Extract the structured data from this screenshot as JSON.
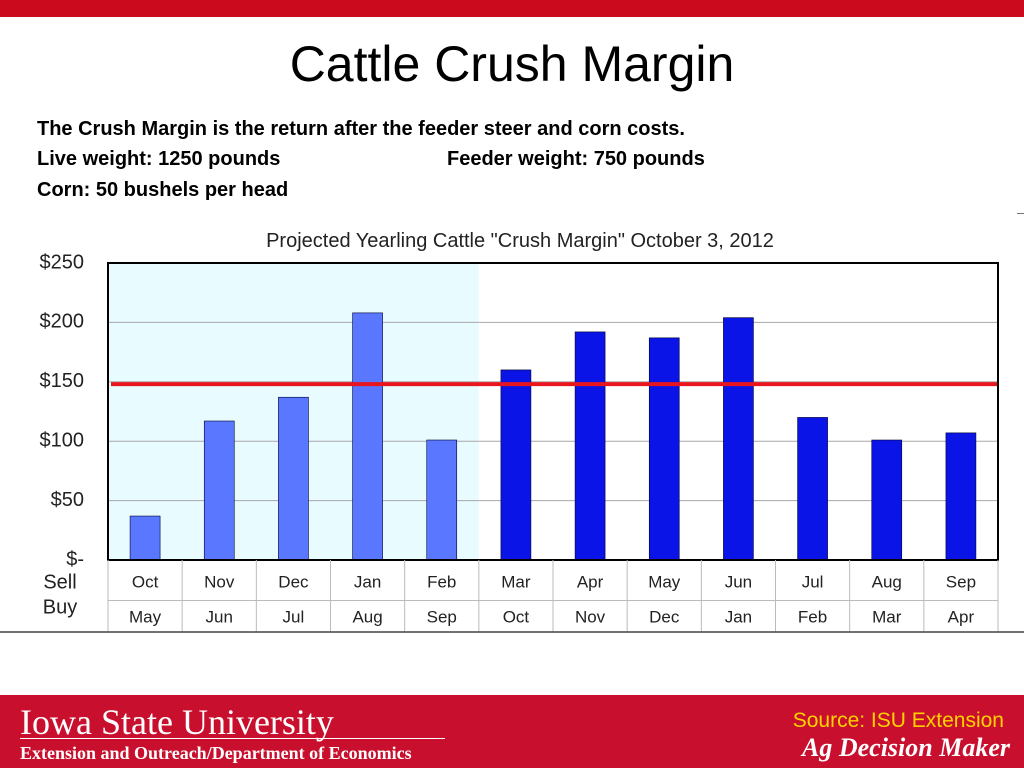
{
  "slide": {
    "title": "Cattle Crush Margin",
    "line1": "The Crush Margin is the return after the feeder steer and corn costs.",
    "line2a": "Live weight:  1250 pounds",
    "line2b": "Feeder weight:  750 pounds",
    "line3": "Corn:  50 bushels per head"
  },
  "footer": {
    "university": "Iowa State University",
    "department": "Extension and Outreach/Department of Economics",
    "source": "Source: ISU Extension",
    "program": "Ag Decision Maker"
  },
  "colors": {
    "brand_red": "#cc0a1e",
    "bar_light": "#5a78ff",
    "bar_dark": "#0a14e6",
    "shade": "#e8fbff",
    "ref_line": "#e8141e"
  },
  "chart_data": {
    "type": "bar",
    "title": "Projected Yearling  Cattle \"Crush Margin\" October 3, 2012",
    "row_labels": [
      "Sell",
      "Buy"
    ],
    "sell_months": [
      "Oct",
      "Nov",
      "Dec",
      "Jan",
      "Feb",
      "Mar",
      "Apr",
      "May",
      "Jun",
      "Jul",
      "Aug",
      "Sep"
    ],
    "buy_months": [
      "May",
      "Jun",
      "Jul",
      "Aug",
      "Sep",
      "Oct",
      "Nov",
      "Dec",
      "Jan",
      "Feb",
      "Mar",
      "Apr"
    ],
    "values": [
      37,
      117,
      137,
      208,
      101,
      160,
      192,
      187,
      204,
      120,
      101,
      107
    ],
    "shaded_count": 5,
    "reference_line": 148,
    "ylim": [
      0,
      250
    ],
    "yticks": [
      0,
      50,
      100,
      150,
      200,
      250
    ],
    "ytick_labels": [
      "$-",
      "$50",
      "$100",
      "$150",
      "$200",
      "$250"
    ],
    "grid": true
  }
}
